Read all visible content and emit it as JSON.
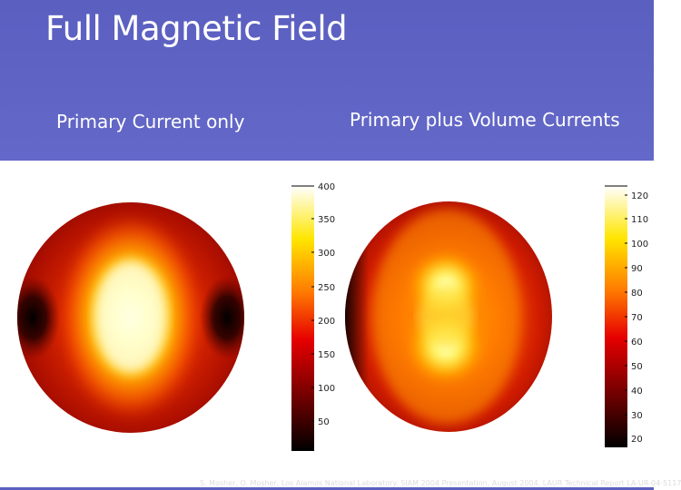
{
  "slide": {
    "title": "Full Magnetic Field",
    "left_caption": "Primary Current only",
    "right_caption": "Primary plus Volume Currents",
    "credit": "S. Mosher, O. Mosher, Los Alamos National Laboratory. SIAM 2004 Presentation, August 2004, LAUR Technical Report LA-UR-04-5117"
  },
  "colorbars": {
    "left": {
      "ticks": [
        "400",
        "350",
        "300",
        "250",
        "200",
        "150",
        "100",
        "50"
      ]
    },
    "right": {
      "ticks": [
        "120",
        "110",
        "100",
        "90",
        "80",
        "70",
        "60",
        "50",
        "40",
        "30",
        "20"
      ]
    }
  },
  "colors": {
    "header": "#5a5fc0",
    "heat_dark": "#000000",
    "heat_red": "#b41400",
    "heat_orange": "#ff5a00",
    "heat_yellow": "#ffe600",
    "heat_white": "#ffffe6"
  }
}
